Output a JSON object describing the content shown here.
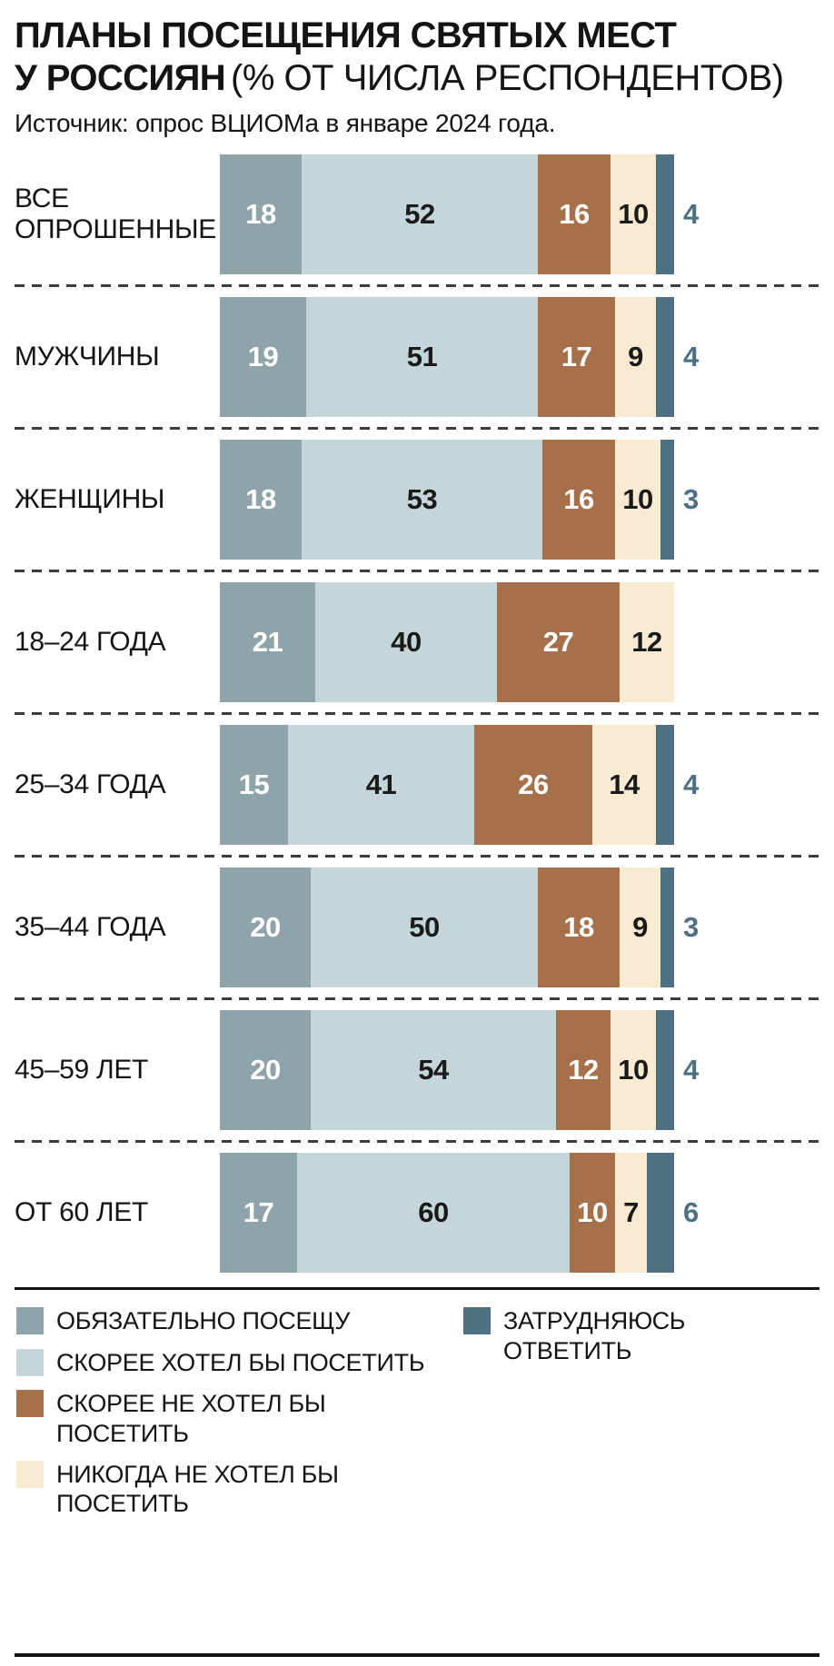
{
  "header": {
    "title_line1": "ПЛАНЫ ПОСЕЩЕНИЯ СВЯТЫХ МЕСТ",
    "title_line2_bold": "У РОССИЯН",
    "title_line2_light": "(% ОТ ЧИСЛА РЕСПОНДЕНТОВ)",
    "source": "Источник: опрос ВЦИОМа в январе 2024 года."
  },
  "chart_data": {
    "type": "bar",
    "variant": "horizontal-stacked",
    "unit": "%",
    "xlim": [
      0,
      100
    ],
    "legend_position": "bottom",
    "categories": [
      "ВСЕ ОПРОШЕННЫЕ",
      "МУЖЧИНЫ",
      "ЖЕНЩИНЫ",
      "18–24 ГОДА",
      "25–34 ГОДА",
      "35–44 ГОДА",
      "45–59 ЛЕТ",
      "ОТ 60 ЛЕТ"
    ],
    "series": [
      {
        "name": "ОБЯЗАТЕЛЬНО ПОСЕЩУ",
        "color": "#8fa3ab",
        "value_color": "#ffffff",
        "value_position": "inside",
        "values": [
          18,
          19,
          18,
          21,
          15,
          20,
          20,
          17
        ]
      },
      {
        "name": "СКОРЕЕ ХОТЕЛ БЫ ПОСЕТИТЬ",
        "color": "#c5d6da",
        "value_color": "#1a1a1a",
        "value_position": "inside",
        "values": [
          52,
          51,
          53,
          40,
          41,
          50,
          54,
          60
        ]
      },
      {
        "name": "СКОРЕЕ НЕ ХОТЕЛ БЫ ПОСЕТИТЬ",
        "color": "#a6704b",
        "value_color": "#ffffff",
        "value_position": "inside",
        "values": [
          16,
          17,
          16,
          27,
          26,
          18,
          12,
          10
        ]
      },
      {
        "name": "НИКОГДА НЕ ХОТЕЛ БЫ ПОСЕТИТЬ",
        "color": "#f8ebd2",
        "value_color": "#1a1a1a",
        "value_position": "inside",
        "values": [
          10,
          9,
          10,
          12,
          14,
          9,
          10,
          7
        ]
      },
      {
        "name": "ЗАТРУДНЯЮСЬ ОТВЕТИТЬ",
        "color": "#4d7183",
        "value_color": "#4d7183",
        "value_position": "outside",
        "values": [
          4,
          4,
          3,
          0,
          4,
          3,
          4,
          6
        ]
      }
    ]
  }
}
